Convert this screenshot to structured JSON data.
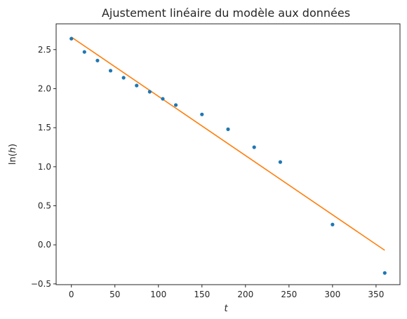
{
  "chart_data": {
    "type": "scatter",
    "title": "Ajustement linéaire du modèle aux données",
    "xlabel": "t",
    "ylabel_prefix": "ln(",
    "ylabel_var": "h",
    "ylabel_suffix": ")",
    "xlim": [
      -17.5,
      377.5
    ],
    "ylim": [
      -0.51,
      2.83
    ],
    "grid": false,
    "xticks": [
      0,
      50,
      100,
      150,
      200,
      250,
      300,
      350
    ],
    "xtick_labels": [
      "0",
      "50",
      "100",
      "150",
      "200",
      "250",
      "300",
      "350"
    ],
    "yticks": [
      -0.5,
      0.0,
      0.5,
      1.0,
      1.5,
      2.0,
      2.5
    ],
    "ytick_labels": [
      "−0.5",
      "0.0",
      "0.5",
      "1.0",
      "1.5",
      "2.0",
      "2.5"
    ],
    "series": [
      {
        "kind": "points",
        "color": "#1f77b4",
        "x": [
          0,
          15,
          30,
          45,
          60,
          75,
          90,
          105,
          120,
          150,
          180,
          210,
          240,
          300,
          360
        ],
        "y": [
          2.64,
          2.47,
          2.36,
          2.23,
          2.14,
          2.04,
          1.96,
          1.87,
          1.79,
          1.67,
          1.48,
          1.25,
          1.06,
          0.26,
          -0.36
        ]
      },
      {
        "kind": "line",
        "color": "#ff7f0e",
        "x": [
          0,
          360
        ],
        "y": [
          2.66,
          -0.07
        ]
      }
    ]
  }
}
